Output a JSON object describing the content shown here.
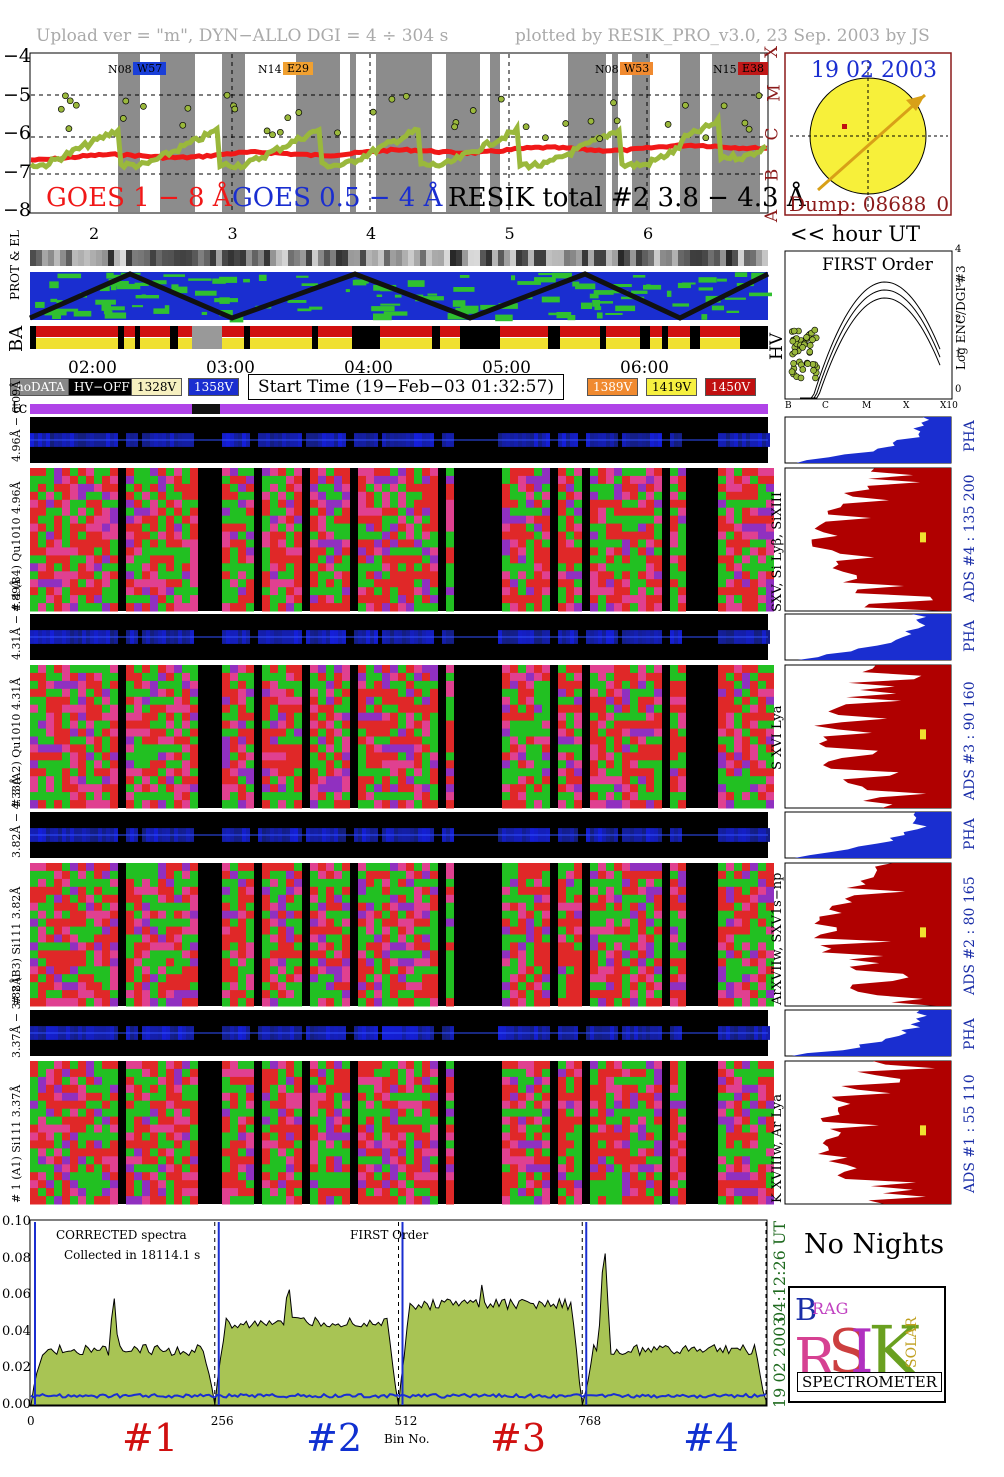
{
  "header": {
    "left": "Upload ver = \"m\", DYN−ALLO DGI =   4 ÷ 304 s",
    "right": "plotted by RESIK_PRO_v3.0, 23 Sep. 2003 by JS"
  },
  "goes": {
    "yticks": [
      "−4",
      "−5",
      "−6",
      "−7",
      "−8"
    ],
    "class_labels": [
      "X",
      "M",
      "C",
      "B",
      "A"
    ],
    "labels": {
      "long": "GOES 1 − 8 Å",
      "short": "GOES 0.5 − 4 Å",
      "resik": "RESIK total #2  3.8 − 4.3 Å"
    },
    "ar_tags": [
      {
        "pre": "N08",
        "tag": "W57",
        "color": "#1a3fd8"
      },
      {
        "pre": "N14",
        "tag": "E29",
        "color": "#f0a030"
      },
      {
        "pre": "N08",
        "tag": "W53",
        "color": "#f08a30"
      },
      {
        "pre": "N15",
        "tag": "E38",
        "color": "#c01818"
      }
    ],
    "hour_ticks": [
      "2",
      "3",
      "4",
      "5",
      "6"
    ],
    "hour_label": "<< hour UT"
  },
  "sun": {
    "date": "19 02 2003",
    "dump": "Dump: 08688_0"
  },
  "order_panel": {
    "title": "FIRST Order",
    "ylabel": "Log ENC/DGI #3",
    "yticks": [
      "0",
      "1",
      "2",
      "3",
      "4"
    ],
    "xticks": [
      "B",
      "C",
      "M",
      "X",
      "X10"
    ],
    "hv": "HV"
  },
  "strips": {
    "prot": "PROT & EL",
    "ba": "BA"
  },
  "time_ticks": [
    "02:00",
    "03:00",
    "04:00",
    "05:00",
    "06:00"
  ],
  "status": {
    "nodata": "noDATA",
    "hvoff": "HV−OFF",
    "v1": "1328V",
    "v2": "1358V",
    "start": "Start Time (19−Feb−03 01:32:57)",
    "v3": "1389V",
    "v4": "1419V",
    "v5": "1450V",
    "tc": "tc"
  },
  "detectors": [
    {
      "pha_label": "4.96Å − 6.09Å",
      "main_label": "# 4 (B4) Qu1010 4.96Å",
      "line": "SXV, Si Lyβ, SiXIII",
      "ads": "ADS #4 :   135 200"
    },
    {
      "pha_label": "4.31Å − 4.89Å",
      "main_label": "# 3 (A2) Qu1010 4.31Å",
      "line": "S XVI Lya",
      "ads": "ADS #3 :    90 160"
    },
    {
      "pha_label": "3.82Å − 4.33Å",
      "main_label": "# 2 (B3) Si111 3.82Å",
      "line": "ArXVIIw, SXV1s−np",
      "ads": "ADS #2 :    80 165"
    },
    {
      "pha_label": "3.37Å − 3.88Å",
      "main_label": "# 1 (A1) Si111 3.37Å",
      "line": "K XVIIIw, Ar Lya",
      "ads": "ADS #1 :    55 110"
    }
  ],
  "pha_word": "PHA",
  "spectrum": {
    "title": "CORRECTED spectra",
    "collected": "Collected in 18114.1 s",
    "order": "FIRST Order",
    "time": "04:12:26 UT",
    "date": "19 02 2003",
    "xlabel": "Bin No.",
    "xticks": [
      "0",
      "256",
      "512",
      "768"
    ],
    "detector_labels": [
      {
        "text": "#1",
        "color": "#d01010"
      },
      {
        "text": "#2",
        "color": "#1030d0"
      },
      {
        "text": "#3",
        "color": "#d01010"
      },
      {
        "text": "#4",
        "color": "#1030d0"
      }
    ]
  },
  "nights": "No Nights",
  "logo": {
    "word": "SPECTROMETER"
  },
  "chart_data": {
    "type": "line",
    "title": "CORRECTED spectra",
    "xlabel": "Bin No.",
    "ylabel": "",
    "xlim": [
      0,
      1024
    ],
    "ylim": [
      0,
      0.1
    ],
    "yticks": [
      0.0,
      0.02,
      0.04,
      0.06,
      0.08,
      0.1
    ],
    "series": [],
    "segments": [
      {
        "x0": 0,
        "x1": 256,
        "level": 0.03,
        "peak": 0.062,
        "peak_at": 0.45
      },
      {
        "x0": 256,
        "x1": 512,
        "level": 0.045,
        "peak": 0.072,
        "peak_at": 0.4
      },
      {
        "x0": 512,
        "x1": 768,
        "level": 0.055,
        "peak": 0.07,
        "peak_at": 0.45
      },
      {
        "x0": 768,
        "x1": 1024,
        "level": 0.03,
        "peak": 0.092,
        "peak_at": 0.12
      }
    ]
  }
}
